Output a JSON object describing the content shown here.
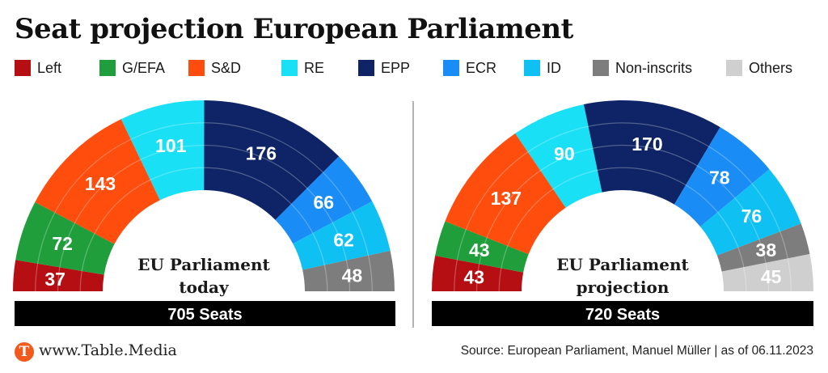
{
  "title": "Seat projection European Parliament",
  "legend": [
    {
      "label": "Left",
      "color": "#b50f14"
    },
    {
      "label": "G/EFA",
      "color": "#1f9e3b"
    },
    {
      "label": "S&D",
      "color": "#ff4d0d"
    },
    {
      "label": "RE",
      "color": "#19e0f5"
    },
    {
      "label": "EPP",
      "color": "#0e2466"
    },
    {
      "label": "ECR",
      "color": "#1a8cf5"
    },
    {
      "label": "ID",
      "color": "#0fc1f2"
    },
    {
      "label": "Non-inscrits",
      "color": "#7d7d7d"
    },
    {
      "label": "Others",
      "color": "#cfcfcf"
    }
  ],
  "chart_data": [
    {
      "type": "pie",
      "subtype": "parliament-hemicycle",
      "center_label": [
        "EU Parliament",
        "today"
      ],
      "total_label": "705 Seats",
      "total": 705,
      "categories": [
        "Left",
        "G/EFA",
        "S&D",
        "RE",
        "EPP",
        "ECR",
        "ID",
        "Non-inscrits"
      ],
      "values": [
        37,
        72,
        143,
        101,
        176,
        66,
        62,
        48
      ]
    },
    {
      "type": "pie",
      "subtype": "parliament-hemicycle",
      "center_label": [
        "EU Parliament",
        "projection"
      ],
      "total_label": "720 Seats",
      "total": 720,
      "categories": [
        "Left",
        "G/EFA",
        "S&D",
        "RE",
        "EPP",
        "ECR",
        "ID",
        "Non-inscrits",
        "Others"
      ],
      "values": [
        43,
        43,
        137,
        90,
        170,
        78,
        76,
        38,
        45
      ]
    }
  ],
  "footer": {
    "logo_letter": "T",
    "site": "www.Table.Media",
    "source": "Source: European Parliament, Manuel Müller | as of 06.11.2023"
  }
}
